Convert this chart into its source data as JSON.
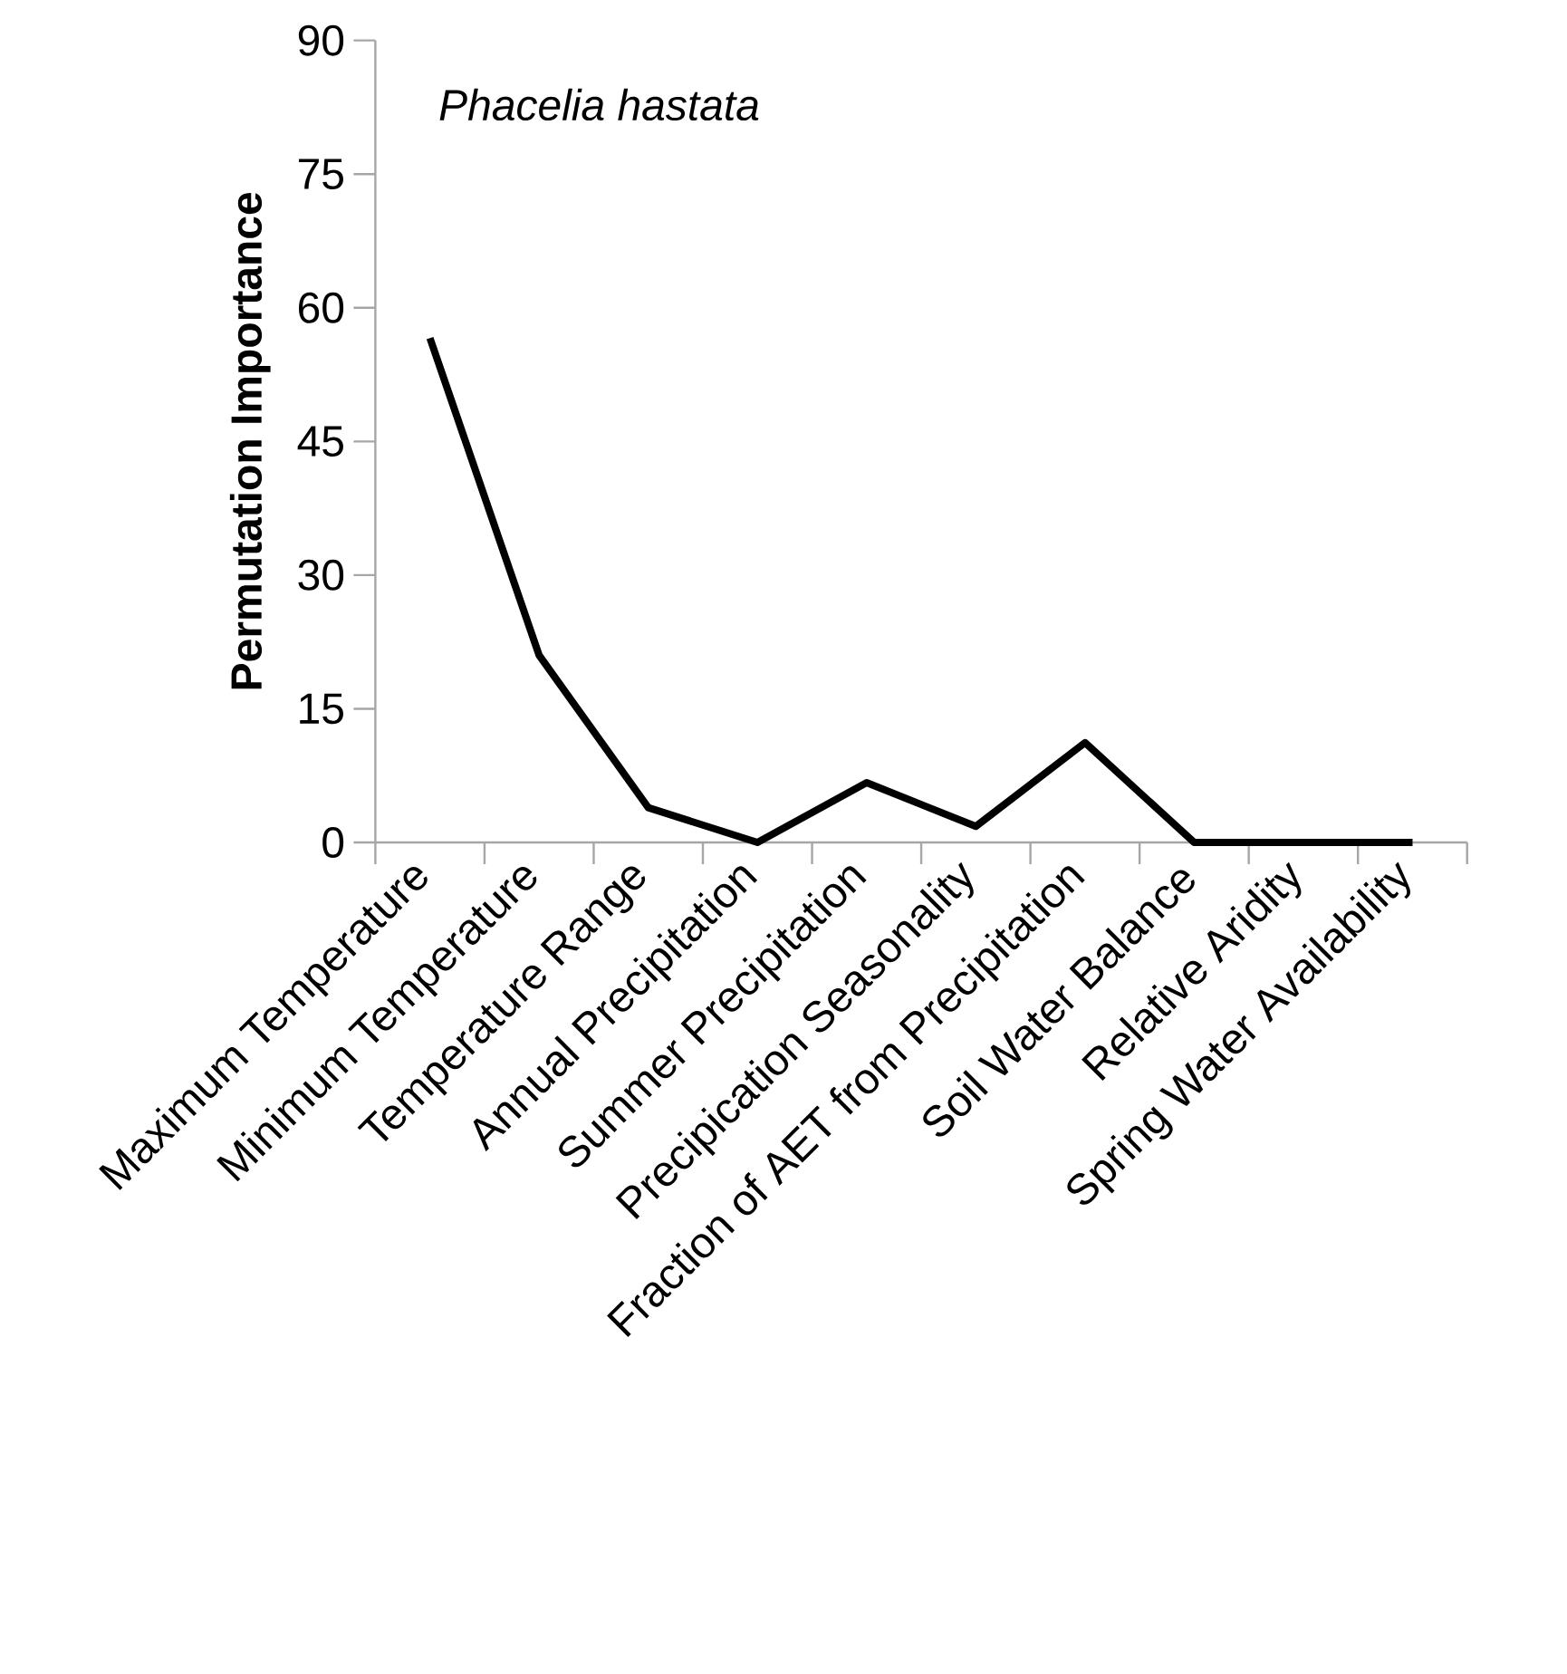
{
  "chart_data": {
    "type": "line",
    "title": "Phacelia hastata",
    "ylabel": "Permutation Importance",
    "categories": [
      "Maximum Temperature",
      "Minimum Temperature",
      "Temperature Range",
      "Annual Precipitation",
      "Summer Precipitation",
      "Precipication Seasonality",
      "Fraction of AET from Precipitation",
      "Soil Water Balance",
      "Relative Aridity",
      "Spring Water Availability"
    ],
    "values": [
      56.6,
      21,
      3.9,
      0,
      6.7,
      1.8,
      11.2,
      0,
      0,
      0
    ],
    "color": "#000000",
    "line_style": "solid",
    "ylim": [
      0,
      90
    ],
    "yticks": [
      0,
      15,
      30,
      45,
      60,
      75,
      90
    ]
  }
}
